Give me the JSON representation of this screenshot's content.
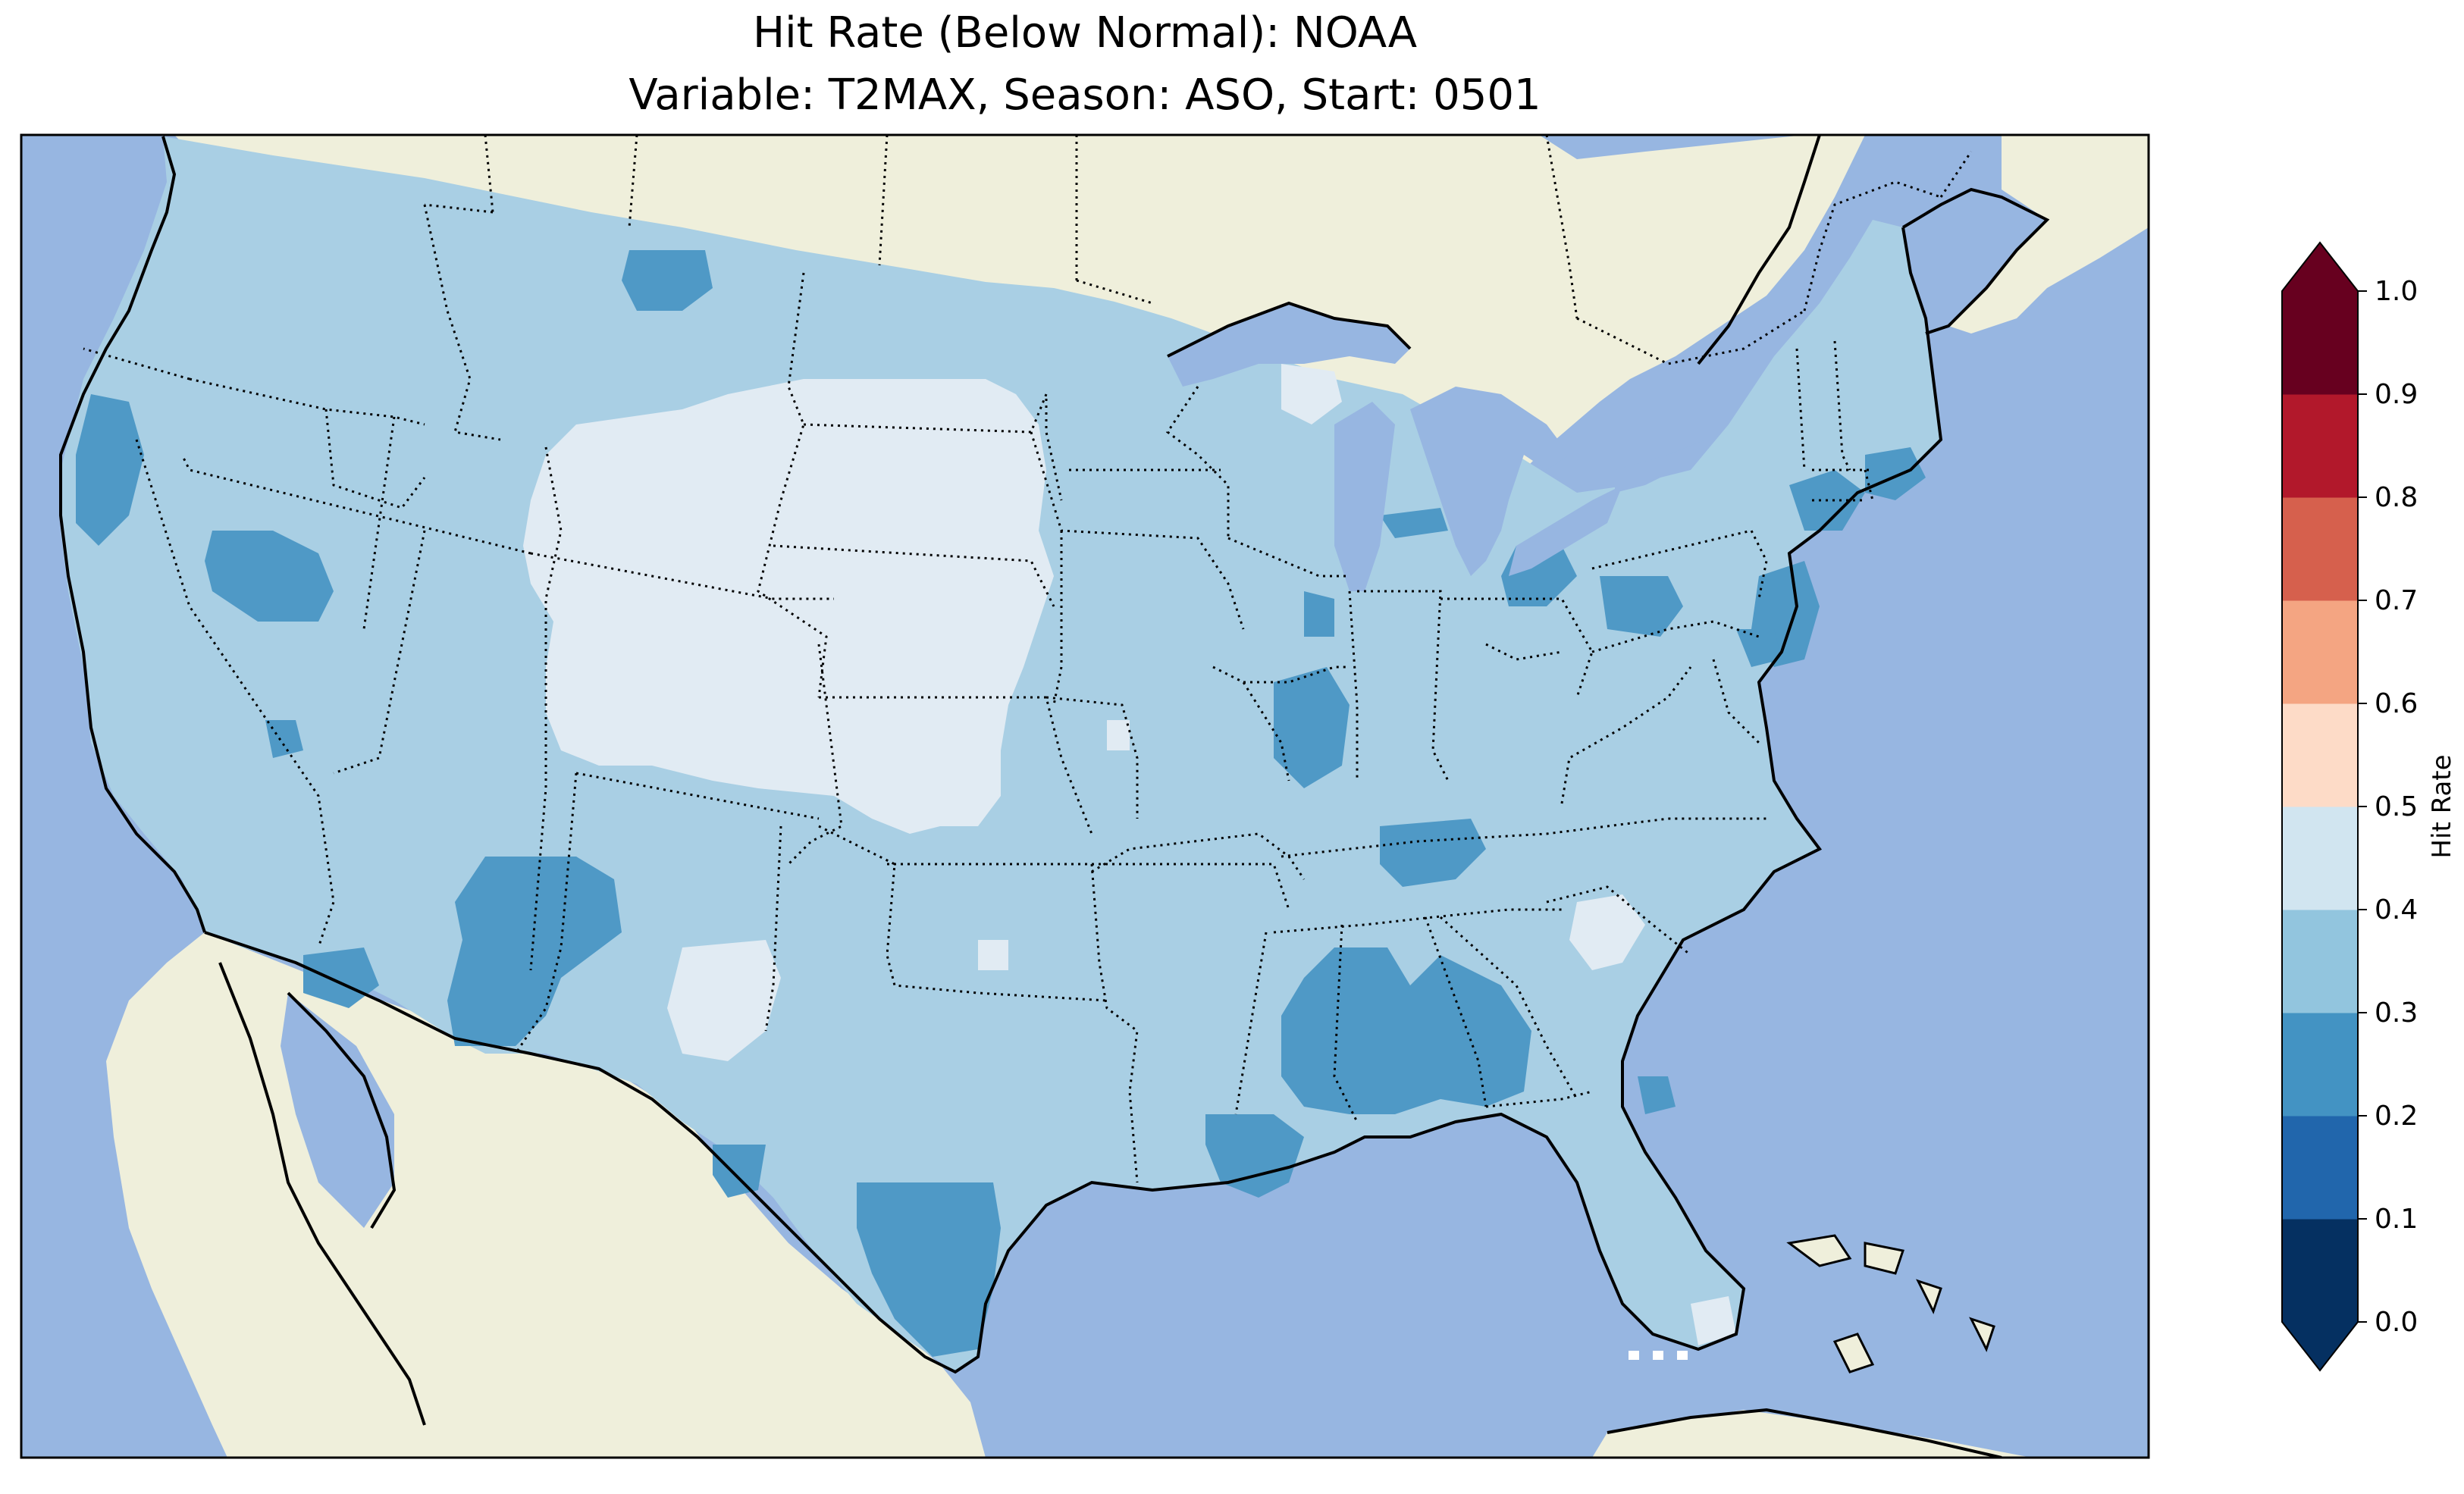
{
  "title": {
    "line1": "Hit Rate (Below Normal): NOAA",
    "line2": "Variable: T2MAX, Season: ASO, Start: 0501"
  },
  "colorbar": {
    "label": "Hit Rate",
    "ticks": [
      "0.0",
      "0.1",
      "0.2",
      "0.3",
      "0.4",
      "0.5",
      "0.6",
      "0.7",
      "0.8",
      "0.9",
      "1.0"
    ],
    "colors": [
      "#053061",
      "#2166ac",
      "#4393c3",
      "#92c5de",
      "#d1e5f0",
      "#fddbc7",
      "#f4a582",
      "#d6604d",
      "#b2182b",
      "#67001f"
    ],
    "under_color": "#053061",
    "over_color": "#67001f",
    "extend": "both"
  },
  "map": {
    "projection": "Lambert Conformal",
    "region": "Contiguous United States",
    "ocean_color": "#97b6e1",
    "land_color": "#efefdb",
    "features": [
      "coastlines",
      "state borders",
      "country borders",
      "lakes"
    ],
    "level_colors": {
      "0.2-0.3": "#4f99c6",
      "0.3-0.4": "#a9cfe4",
      "0.4-0.5": "#e1ebf3"
    },
    "dominant_range": "0.3-0.4",
    "regions_0.4-0.5": [
      "Wyoming",
      "South Dakota",
      "Nebraska",
      "Colorado",
      "Kansas",
      "southeast New Mexico",
      "South Carolina",
      "southern Florida"
    ],
    "regions_0.2-0.3": [
      "northern Montana",
      "coastal Oregon",
      "northern Nevada",
      "Arizona",
      "western New Mexico",
      "Illinois",
      "Mississippi",
      "Alabama",
      "Louisiana",
      "Texas Gulf coast",
      "New Jersey",
      "Massachusetts"
    ]
  }
}
